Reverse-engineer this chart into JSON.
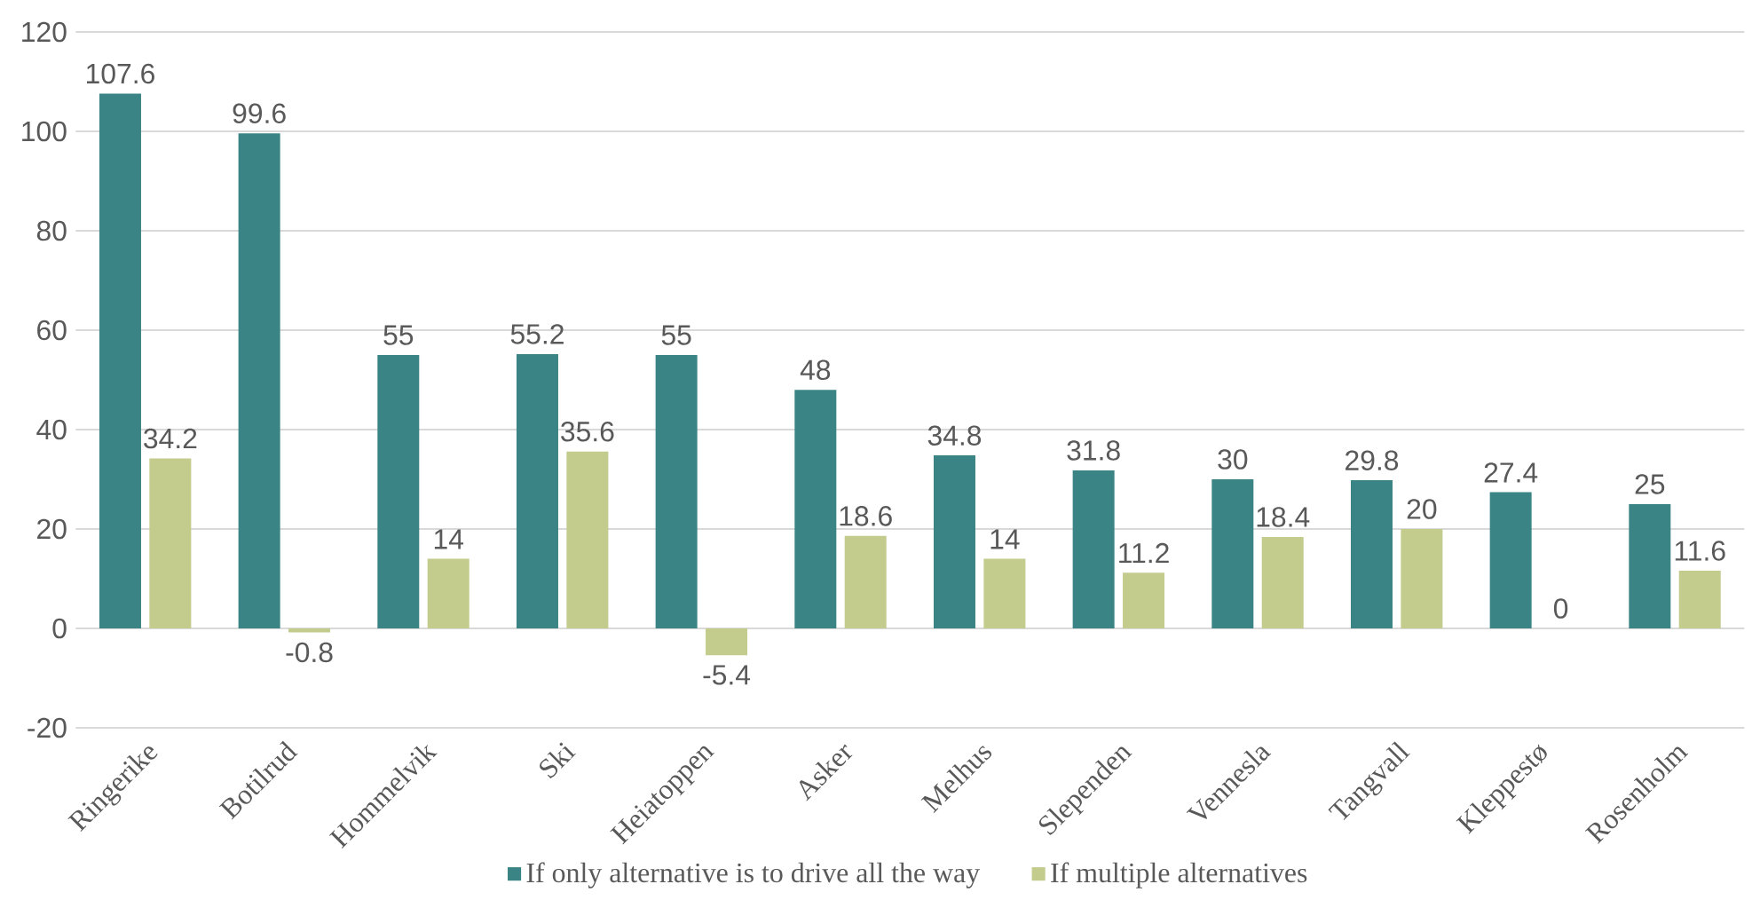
{
  "chart_data": {
    "type": "bar",
    "categories": [
      "Ringerike",
      "Botilrud",
      "Hommelvik",
      "Ski",
      "Heiatoppen",
      "Asker",
      "Melhus",
      "Slependen",
      "Vennesla",
      "Tangvall",
      "Kleppestø",
      "Rosenholm"
    ],
    "series": [
      {
        "name": "If only alternative is to drive all the way",
        "color": "#3b8486",
        "values": [
          107.6,
          99.6,
          55,
          55.2,
          55,
          48,
          34.8,
          31.8,
          30,
          29.8,
          27.4,
          25
        ]
      },
      {
        "name": "If multiple alternatives",
        "color": "#c3cb8d",
        "values": [
          34.2,
          -0.8,
          14,
          35.6,
          -5.4,
          18.6,
          14,
          11.2,
          18.4,
          20,
          0,
          11.6
        ]
      }
    ],
    "ylim": [
      -20,
      120
    ],
    "yticks": [
      -20,
      0,
      20,
      40,
      60,
      80,
      100,
      120
    ],
    "grid": "y",
    "legend": "bottom",
    "data_labels": true
  }
}
